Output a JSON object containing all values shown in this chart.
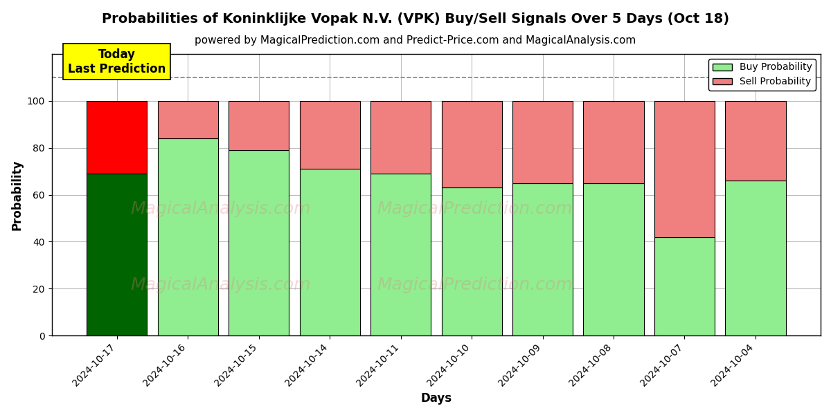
{
  "title": "Probabilities of Koninklijke Vopak N.V. (VPK) Buy/Sell Signals Over 5 Days (Oct 18)",
  "subtitle": "powered by MagicalPrediction.com and Predict-Price.com and MagicalAnalysis.com",
  "xlabel": "Days",
  "ylabel": "Probability",
  "days": [
    "2024-10-17",
    "2024-10-16",
    "2024-10-15",
    "2024-10-14",
    "2024-10-11",
    "2024-10-10",
    "2024-10-09",
    "2024-10-08",
    "2024-10-07",
    "2024-10-04"
  ],
  "buy_values": [
    69,
    84,
    79,
    71,
    69,
    63,
    65,
    65,
    42,
    66
  ],
  "sell_values": [
    31,
    16,
    21,
    29,
    31,
    37,
    35,
    35,
    58,
    34
  ],
  "today_buy_color": "#006400",
  "today_sell_color": "#FF0000",
  "buy_color": "#90EE90",
  "sell_color": "#F08080",
  "today_annotation": "Today\nLast Prediction",
  "today_annotation_bg": "#FFFF00",
  "ylim": [
    0,
    120
  ],
  "yticks": [
    0,
    20,
    40,
    60,
    80,
    100
  ],
  "dashed_line_y": 110,
  "legend_buy_label": "Buy Probability",
  "legend_sell_label": "Sell Probability",
  "bar_width": 0.85,
  "title_fontsize": 14,
  "subtitle_fontsize": 11,
  "axis_label_fontsize": 12,
  "tick_fontsize": 10,
  "bg_color": "#ffffff",
  "grid_color": "#bbbbbb",
  "edgecolor": "#000000",
  "watermark1_text": "MagicalAnalysis.com",
  "watermark2_text": "MagicalPrediction.com",
  "watermark3_text": "MagicalAnalysis.com",
  "watermark_color": "#e08080",
  "watermark_alpha": 0.3
}
